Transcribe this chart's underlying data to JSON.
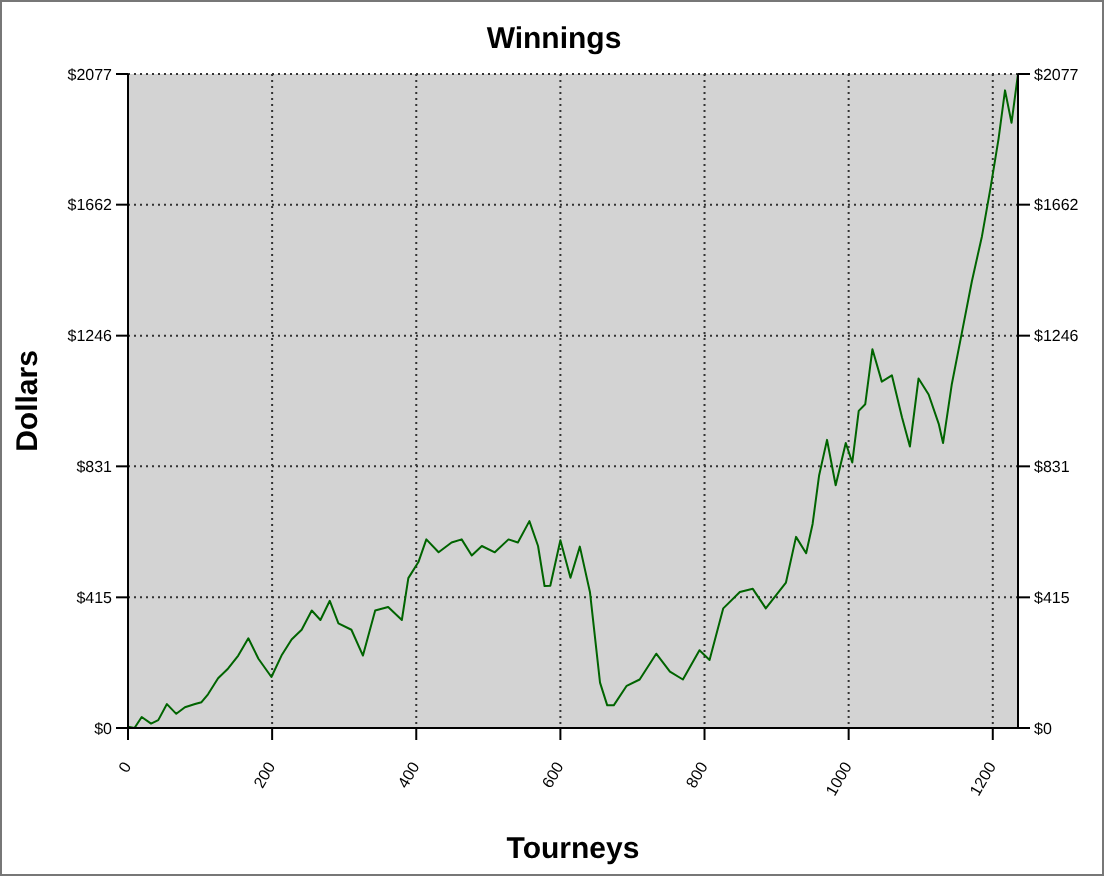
{
  "chart_data": {
    "type": "line",
    "title": "Winnings",
    "xlabel": "Tourneys",
    "ylabel": "Dollars",
    "x": [
      0,
      9,
      19,
      32,
      42,
      54,
      67,
      79,
      93,
      102,
      111,
      125,
      139,
      153,
      167,
      181,
      199,
      213,
      227,
      241,
      255,
      267,
      280,
      292,
      310,
      326,
      343,
      361,
      380,
      389,
      403,
      414,
      431,
      449,
      463,
      477,
      491,
      509,
      528,
      541,
      557,
      569,
      578,
      586,
      600,
      614,
      627,
      641,
      655,
      665,
      674,
      692,
      710,
      733,
      752,
      770,
      793,
      807,
      826,
      849,
      867,
      885,
      913,
      927,
      941,
      950,
      959,
      970,
      982,
      996,
      1005,
      1014,
      1023,
      1033,
      1046,
      1060,
      1074,
      1085,
      1097,
      1111,
      1125,
      1131,
      1143,
      1157,
      1171,
      1185,
      1197,
      1208,
      1217,
      1226,
      1235
    ],
    "series": [
      {
        "color": "#006400",
        "values": [
          4,
          0,
          35,
          14,
          25,
          76,
          45,
          66,
          76,
          82,
          107,
          158,
          189,
          230,
          285,
          220,
          162,
          230,
          281,
          312,
          373,
          343,
          404,
          332,
          312,
          230,
          373,
          384,
          343,
          476,
          527,
          599,
          558,
          589,
          599,
          548,
          578,
          558,
          599,
          589,
          657,
          578,
          451,
          452,
          596,
          477,
          576,
          432,
          144,
          72,
          72,
          134,
          154,
          236,
          179,
          154,
          247,
          216,
          380,
          432,
          442,
          380,
          462,
          607,
          555,
          648,
          802,
          915,
          771,
          905,
          843,
          1007,
          1028,
          1203,
          1100,
          1120,
          987,
          894,
          1110,
          1059,
          966,
          905,
          1090,
          1254,
          1419,
          1562,
          1717,
          1871,
          2025,
          1922,
          2077
        ]
      }
    ],
    "xlim": [
      0,
      1235
    ],
    "xticks": [
      0,
      200,
      400,
      600,
      800,
      1000,
      1200
    ],
    "ylim": [
      0,
      2077
    ],
    "yticks": [
      {
        "value": 0,
        "label": "$0"
      },
      {
        "value": 415,
        "label": "$415"
      },
      {
        "value": 831,
        "label": "$831"
      },
      {
        "value": 1246,
        "label": "$1246"
      },
      {
        "value": 1662,
        "label": "$1662"
      },
      {
        "value": 2077,
        "label": "$2077"
      }
    ],
    "y2lim": [
      0,
      2077
    ],
    "y2ticks": [
      {
        "value": 0,
        "label": "$0"
      },
      {
        "value": 415,
        "label": "$415"
      },
      {
        "value": 831,
        "label": "$831"
      },
      {
        "value": 1246,
        "label": "$1246"
      },
      {
        "value": 1662,
        "label": "$1662"
      },
      {
        "value": 2077,
        "label": "$2077"
      }
    ],
    "grid": true,
    "marker": "none",
    "line_style": "solid"
  }
}
